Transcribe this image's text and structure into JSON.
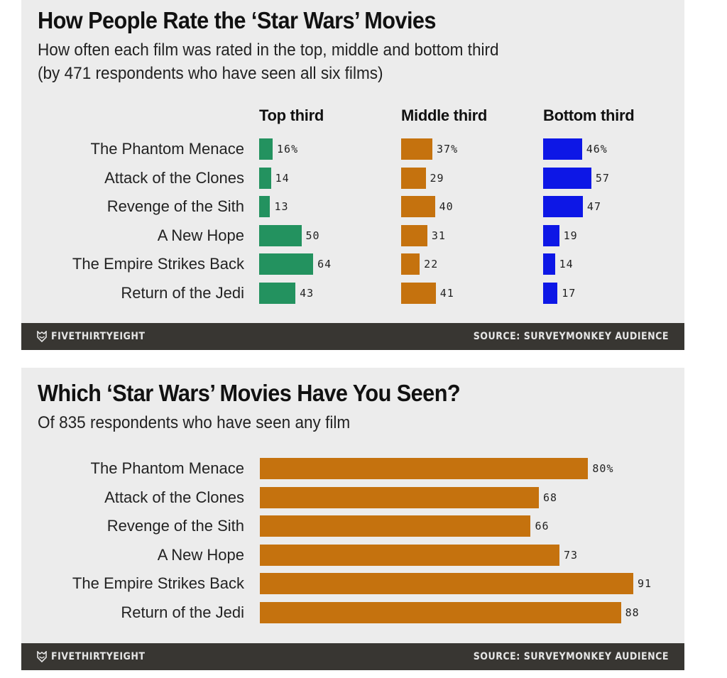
{
  "chart1": {
    "title": "How People Rate the ‘Star Wars’ Movies",
    "subtitle_line1": "How often each film was rated in the top, middle and bottom third",
    "subtitle_line2": "(by 471 respondents who have seen all six films)",
    "columns": [
      {
        "label": "Top third",
        "color": "#23925f"
      },
      {
        "label": "Middle third",
        "color": "#c5720e"
      },
      {
        "label": "Bottom third",
        "color": "#0d17e6"
      }
    ],
    "rows": [
      {
        "label": "The Phantom Menace",
        "values": [
          "16%",
          "37%",
          "46%"
        ]
      },
      {
        "label": "Attack of the Clones",
        "values": [
          "14",
          "29",
          "57"
        ]
      },
      {
        "label": "Revenge of the Sith",
        "values": [
          "13",
          "40",
          "47"
        ]
      },
      {
        "label": "A New Hope",
        "values": [
          "50",
          "31",
          "19"
        ]
      },
      {
        "label": "The Empire Strikes Back",
        "values": [
          "64",
          "22",
          "14"
        ]
      },
      {
        "label": "Return of the Jedi",
        "values": [
          "43",
          "41",
          "17"
        ]
      }
    ],
    "footer": {
      "brand": "FIVETHIRTYEIGHT",
      "source": "SOURCE: SURVEYMONKEY AUDIENCE"
    }
  },
  "chart2": {
    "title": "Which ‘Star Wars’ Movies Have You Seen?",
    "subtitle": "Of 835 respondents who have seen any film",
    "color": "#c5720e",
    "rows": [
      {
        "label": "The Phantom Menace",
        "value": "80%"
      },
      {
        "label": "Attack of the Clones",
        "value": "68"
      },
      {
        "label": "Revenge of the Sith",
        "value": "66"
      },
      {
        "label": "A New Hope",
        "value": "73"
      },
      {
        "label": "The Empire Strikes Back",
        "value": "91"
      },
      {
        "label": "Return of the Jedi",
        "value": "88"
      }
    ],
    "footer": {
      "brand": "FIVETHIRTYEIGHT",
      "source": "SOURCE: SURVEYMONKEY AUDIENCE"
    }
  },
  "chart_data": [
    {
      "type": "bar",
      "orientation": "horizontal",
      "title": "How People Rate the ‘Star Wars’ Movies",
      "subtitle": "How often each film was rated in the top, middle and bottom third (by 471 respondents who have seen all six films)",
      "categories": [
        "The Phantom Menace",
        "Attack of the Clones",
        "Revenge of the Sith",
        "A New Hope",
        "The Empire Strikes Back",
        "Return of the Jedi"
      ],
      "series": [
        {
          "name": "Top third",
          "color": "#23925f",
          "values": [
            16,
            14,
            13,
            50,
            64,
            43
          ]
        },
        {
          "name": "Middle third",
          "color": "#c5720e",
          "values": [
            37,
            29,
            40,
            31,
            22,
            41
          ]
        },
        {
          "name": "Bottom third",
          "color": "#0d17e6",
          "values": [
            46,
            57,
            47,
            19,
            14,
            17
          ]
        }
      ],
      "unit": "%",
      "layout": "small multiples, one column per series",
      "grid": false,
      "source": "SurveyMonkey Audience"
    },
    {
      "type": "bar",
      "orientation": "horizontal",
      "title": "Which ‘Star Wars’ Movies Have You Seen?",
      "subtitle": "Of 835 respondents who have seen any film",
      "categories": [
        "The Phantom Menace",
        "Attack of the Clones",
        "Revenge of the Sith",
        "A New Hope",
        "The Empire Strikes Back",
        "Return of the Jedi"
      ],
      "values": [
        80,
        68,
        66,
        73,
        91,
        88
      ],
      "unit": "%",
      "color": "#c5720e",
      "grid": false,
      "source": "SurveyMonkey Audience"
    }
  ]
}
